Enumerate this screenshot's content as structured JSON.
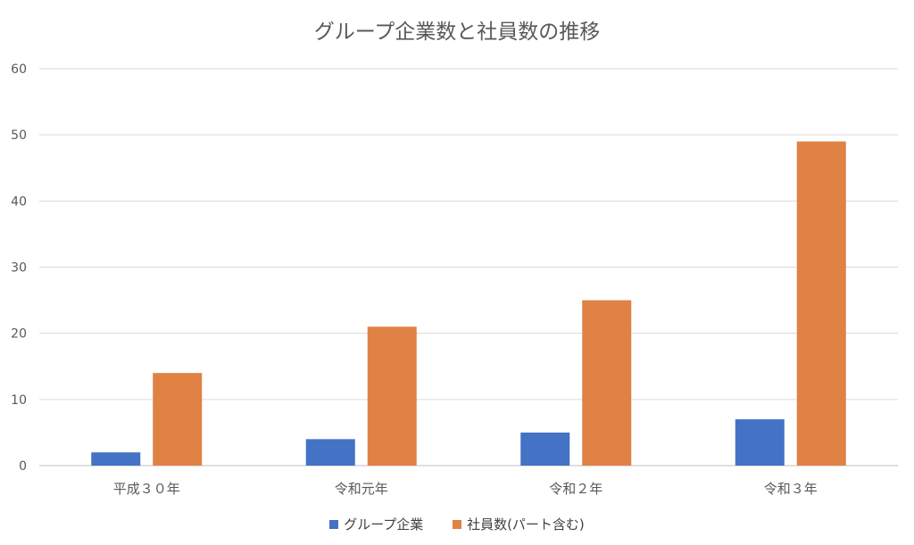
{
  "chart_data": {
    "type": "bar",
    "title": "グループ企業数と社員数の推移",
    "categories": [
      "平成３０年",
      "令和元年",
      "令和２年",
      "令和３年"
    ],
    "series": [
      {
        "name": "グループ企業",
        "values": [
          2,
          4,
          5,
          7
        ],
        "color": "#4472C4"
      },
      {
        "name": "社員数(パート含む)",
        "values": [
          14,
          21,
          25,
          49
        ],
        "color": "#DF8244"
      }
    ],
    "yticks": [
      "0",
      "10",
      "20",
      "30",
      "40",
      "50",
      "60"
    ],
    "ylim": [
      0,
      60
    ],
    "grid": true,
    "legend": "bottom",
    "xlabel": "",
    "ylabel": ""
  }
}
